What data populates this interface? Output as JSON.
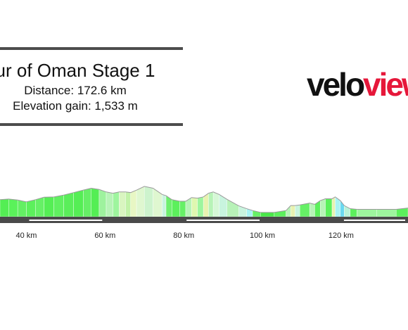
{
  "header": {
    "title": "ur of Oman Stage 1",
    "distance": "Distance: 172.6 km",
    "elevation": "Elevation gain: 1,533 m"
  },
  "brand": {
    "part1": "velo",
    "part2": "view"
  },
  "chart_data": {
    "type": "area",
    "x_unit": "km",
    "x_ticks": [
      {
        "km": 40,
        "label": "40 km"
      },
      {
        "km": 60,
        "label": "60 km"
      },
      {
        "km": 80,
        "label": "80 km"
      },
      {
        "km": 100,
        "label": "100 km"
      },
      {
        "km": 120,
        "label": "120 km"
      }
    ],
    "xlim": [
      33.3,
      137
    ],
    "elevation_scale": [
      0,
      1
    ],
    "profile": [
      {
        "km": 33.3,
        "elev": 0.55,
        "color": "#54ee54"
      },
      {
        "km": 35.5,
        "elev": 0.57,
        "color": "#5af25a"
      },
      {
        "km": 37.8,
        "elev": 0.54,
        "color": "#63ef63"
      },
      {
        "km": 40.0,
        "elev": 0.48,
        "color": "#5cf05c"
      },
      {
        "km": 42.3,
        "elev": 0.55,
        "color": "#66f066"
      },
      {
        "km": 44.5,
        "elev": 0.63,
        "color": "#55ee55"
      },
      {
        "km": 47.0,
        "elev": 0.64,
        "color": "#60f060"
      },
      {
        "km": 49.5,
        "elev": 0.7,
        "color": "#5aee5a"
      },
      {
        "km": 52.0,
        "elev": 0.78,
        "color": "#55ee55"
      },
      {
        "km": 54.5,
        "elev": 0.86,
        "color": "#66ef66"
      },
      {
        "km": 56.5,
        "elev": 0.92,
        "color": "#54ee54"
      },
      {
        "km": 58.5,
        "elev": 0.88,
        "color": "#9ef29e"
      },
      {
        "km": 60.3,
        "elev": 0.8,
        "color": "#b7f3b7"
      },
      {
        "km": 62.0,
        "elev": 0.76,
        "color": "#9ef59e"
      },
      {
        "km": 63.6,
        "elev": 0.8,
        "color": "#d9f5c0"
      },
      {
        "km": 65.2,
        "elev": 0.8,
        "color": "#c2f2a8"
      },
      {
        "km": 66.5,
        "elev": 0.78,
        "color": "#e8f7c4"
      },
      {
        "km": 68.0,
        "elev": 0.86,
        "color": "#dff7d0"
      },
      {
        "km": 70.0,
        "elev": 0.98,
        "color": "#cdf3cd"
      },
      {
        "km": 72.2,
        "elev": 0.92,
        "color": "#dff7d0"
      },
      {
        "km": 74.5,
        "elev": 0.72,
        "color": "#c8f4de"
      },
      {
        "km": 75.5,
        "elev": 0.68,
        "color": "#6eef6e"
      },
      {
        "km": 77.0,
        "elev": 0.55,
        "color": "#5cf05c"
      },
      {
        "km": 79.0,
        "elev": 0.5,
        "color": "#66f066"
      },
      {
        "km": 80.5,
        "elev": 0.5,
        "color": "#b7f3b7"
      },
      {
        "km": 82.0,
        "elev": 0.62,
        "color": "#dff7b0"
      },
      {
        "km": 83.5,
        "elev": 0.6,
        "color": "#9ef59e"
      },
      {
        "km": 85.0,
        "elev": 0.64,
        "color": "#e8f2b0"
      },
      {
        "km": 86.3,
        "elev": 0.76,
        "color": "#b7f3b7"
      },
      {
        "km": 87.5,
        "elev": 0.8,
        "color": "#d6f7d6"
      },
      {
        "km": 89.0,
        "elev": 0.72,
        "color": "#c8f4de"
      },
      {
        "km": 91.0,
        "elev": 0.56,
        "color": "#b8f2b8"
      },
      {
        "km": 94.0,
        "elev": 0.35,
        "color": "#c8f4de"
      },
      {
        "km": 96.0,
        "elev": 0.26,
        "color": "#a8f3f3"
      },
      {
        "km": 97.5,
        "elev": 0.2,
        "color": "#66f066"
      },
      {
        "km": 99.5,
        "elev": 0.14,
        "color": "#48e848"
      },
      {
        "km": 103.0,
        "elev": 0.14,
        "color": "#5cf05c"
      },
      {
        "km": 106.0,
        "elev": 0.2,
        "color": "#b7f3b7"
      },
      {
        "km": 107.2,
        "elev": 0.36,
        "color": "#e8f2b0"
      },
      {
        "km": 108.3,
        "elev": 0.36,
        "color": "#c8f4de"
      },
      {
        "km": 109.5,
        "elev": 0.38,
        "color": "#66f066"
      },
      {
        "km": 112.0,
        "elev": 0.44,
        "color": "#b7f3b7"
      },
      {
        "km": 113.3,
        "elev": 0.4,
        "color": "#5cf05c"
      },
      {
        "km": 114.7,
        "elev": 0.52,
        "color": "#b7f3b7"
      },
      {
        "km": 116.0,
        "elev": 0.58,
        "color": "#5cf05c"
      },
      {
        "km": 117.7,
        "elev": 0.58,
        "color": "#e8f2b0"
      },
      {
        "km": 118.5,
        "elev": 0.64,
        "color": "#a8f3f3"
      },
      {
        "km": 119.8,
        "elev": 0.52,
        "color": "#6ad8f0"
      },
      {
        "km": 120.8,
        "elev": 0.36,
        "color": "#b8f2d8"
      },
      {
        "km": 122.3,
        "elev": 0.26,
        "color": "#5cf05c"
      },
      {
        "km": 124.0,
        "elev": 0.24,
        "color": "#9ef59e"
      },
      {
        "km": 129.0,
        "elev": 0.24,
        "color": "#9ef59e"
      },
      {
        "km": 134.0,
        "elev": 0.24,
        "color": "#5cf05c"
      },
      {
        "km": 137.0,
        "elev": 0.28,
        "color": "#5cf05c"
      }
    ]
  }
}
